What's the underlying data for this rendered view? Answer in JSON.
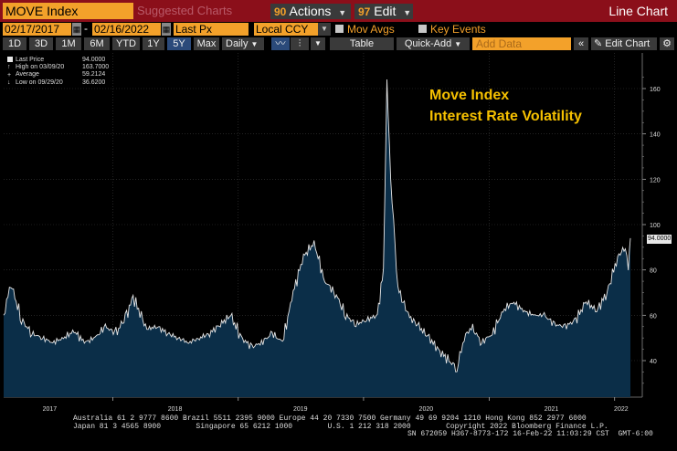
{
  "toolbar": {
    "ticker": "MOVE Index",
    "suggested": "Suggested Charts",
    "actions": {
      "num": "90",
      "label": "Actions"
    },
    "edit": {
      "num": "97",
      "label": "Edit"
    },
    "title": "Line Chart"
  },
  "settings": {
    "start_date": "02/17/2017",
    "end_date": "02/16/2022",
    "field": "Last Px",
    "currency": "Local CCY",
    "mov_avgs": "Mov Avgs",
    "key_events": "Key Events"
  },
  "range_bar": {
    "ranges": [
      "1D",
      "3D",
      "1M",
      "6M",
      "YTD",
      "1Y",
      "5Y",
      "Max"
    ],
    "active": "5Y",
    "frequency": "Daily",
    "table": "Table",
    "quick_add": "Quick-Add",
    "add_data_placeholder": "Add Data",
    "edit_chart": "Edit Chart"
  },
  "legend": [
    {
      "label": "Last Price",
      "value": "94.0000",
      "swatch": "#e8e8e8"
    },
    {
      "label": "High on 03/09/20",
      "value": "163.7000",
      "swatch": ""
    },
    {
      "label": "Average",
      "value": "59.2124",
      "swatch": ""
    },
    {
      "label": "Low on 09/29/20",
      "value": "36.6200",
      "swatch": ""
    }
  ],
  "annotation": {
    "line1": "Move Index",
    "line2": "Interest Rate Volatility"
  },
  "last_value_label": "94.0000",
  "chart_data": {
    "type": "area",
    "title": "",
    "xlabel": "",
    "ylabel": "",
    "ylim": [
      25,
      170
    ],
    "y_ticks": [
      40,
      60,
      80,
      100,
      120,
      140,
      160
    ],
    "x_ticks": [
      "2017",
      "2018",
      "2019",
      "2020",
      "2021",
      "2022"
    ],
    "grid": true,
    "colors": {
      "line": "#e6e6e6",
      "fill": "#0b2e48",
      "grid": "#3a3a3a",
      "accent": "#f3a12a",
      "annotation": "#f5c000"
    },
    "series": [
      {
        "x": [
          "2017-02-17",
          "2017-03-10",
          "2017-04-10",
          "2017-05-10",
          "2017-06-10",
          "2017-07-10",
          "2017-08-10",
          "2017-09-10",
          "2017-10-10",
          "2017-11-10",
          "2017-12-10",
          "2018-01-10",
          "2018-02-10",
          "2018-03-01",
          "2018-04-10",
          "2018-05-10",
          "2018-06-10",
          "2018-07-10",
          "2018-08-10",
          "2018-09-10",
          "2018-10-10",
          "2018-11-10",
          "2018-12-10",
          "2019-01-10",
          "2019-02-10",
          "2019-03-10",
          "2019-04-10",
          "2019-05-10",
          "2019-06-10",
          "2019-07-10",
          "2019-08-10",
          "2019-09-10",
          "2019-10-10",
          "2019-11-10",
          "2019-12-10",
          "2020-01-10",
          "2020-02-10",
          "2020-02-28",
          "2020-03-09",
          "2020-03-20",
          "2020-04-10",
          "2020-05-10",
          "2020-06-10",
          "2020-07-10",
          "2020-08-10",
          "2020-09-29",
          "2020-10-20",
          "2020-11-10",
          "2020-12-10",
          "2021-01-10",
          "2021-02-10",
          "2021-03-10",
          "2021-04-10",
          "2021-05-10",
          "2021-06-10",
          "2021-07-10",
          "2021-08-10",
          "2021-09-10",
          "2021-10-10",
          "2021-11-10",
          "2021-12-10",
          "2022-01-10",
          "2022-02-01",
          "2022-02-10",
          "2022-02-16"
        ],
        "y": [
          60,
          74,
          58,
          52,
          50,
          48,
          50,
          53,
          48,
          50,
          55,
          52,
          60,
          68,
          54,
          55,
          52,
          50,
          48,
          50,
          52,
          56,
          60,
          50,
          46,
          48,
          52,
          48,
          70,
          86,
          92,
          75,
          70,
          60,
          56,
          58,
          60,
          80,
          163.7,
          120,
          72,
          60,
          55,
          50,
          44,
          36.62,
          50,
          55,
          48,
          52,
          62,
          66,
          62,
          60,
          60,
          56,
          55,
          58,
          66,
          62,
          70,
          86,
          90,
          82,
          94
        ]
      }
    ]
  },
  "footer": {
    "line1": "Australia 61 2 9777 8600 Brazil 5511 2395 9000 Europe 44 20 7330 7500 Germany 49 69 9204 1210 Hong Kong 852 2977 6000",
    "line2": "Japan 81 3 4565 8900        Singapore 65 6212 1000        U.S. 1 212 318 2000        Copyright 2022 Bloomberg Finance L.P.",
    "line3": "SN 672059 H367-8773-172 16-Feb-22 11:03:29 CST  GMT-6:00"
  }
}
